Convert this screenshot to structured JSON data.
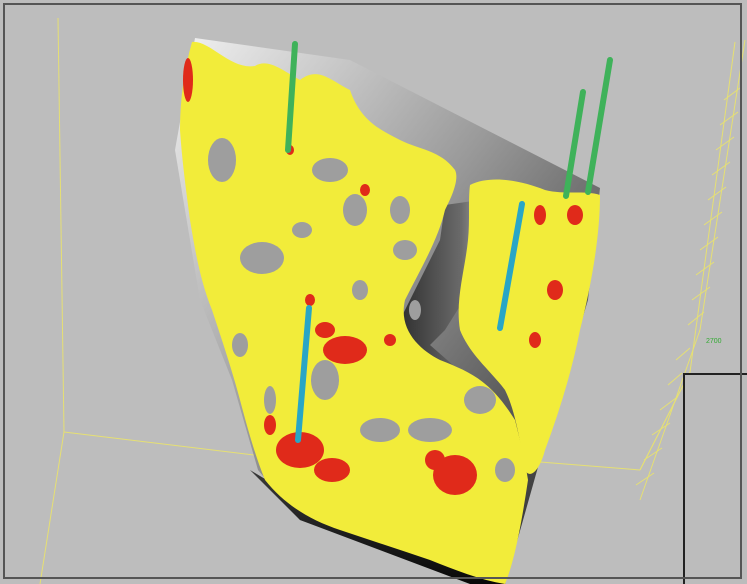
{
  "scene": {
    "background_color": "#bdbdbd",
    "wireframe_color": "#e6e073",
    "property_colors": {
      "high": "#f2ec3a",
      "low": "#e02a1a",
      "surface": "#9c9c9c"
    },
    "well_colors": {
      "producer": "#3fb25a",
      "injector": "#29a6c6"
    },
    "depth_tick_label": "2700"
  },
  "wells": [
    {
      "type": "producer"
    },
    {
      "type": "producer"
    },
    {
      "type": "producer"
    },
    {
      "type": "injector"
    },
    {
      "type": "injector"
    }
  ]
}
